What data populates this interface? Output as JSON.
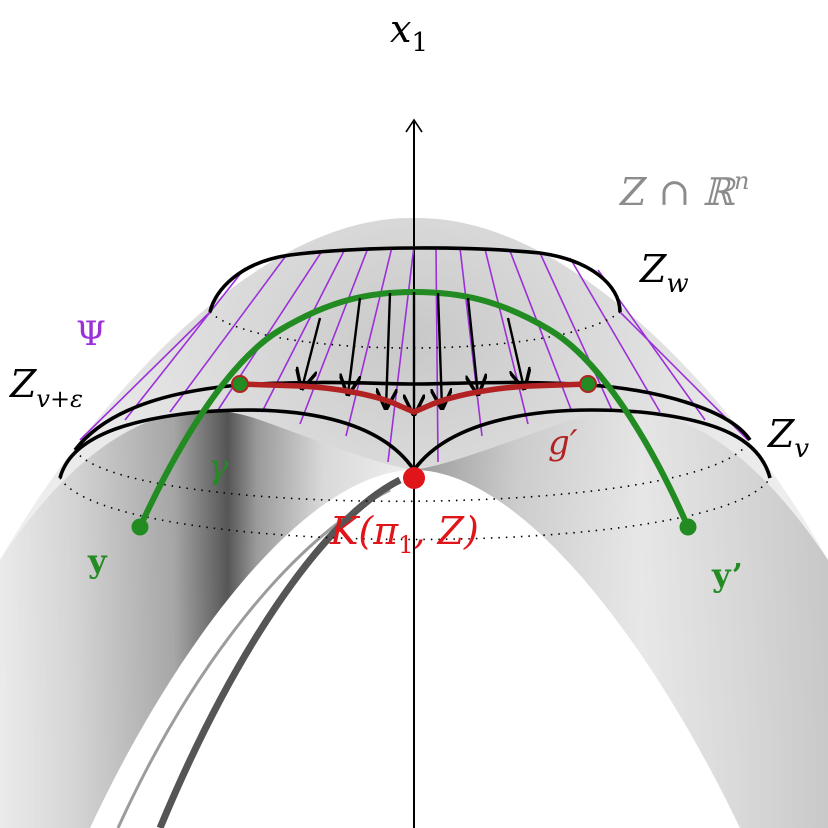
{
  "labels": {
    "axis": "x",
    "axis_sub": "1",
    "set": "Z ∩ ℝ",
    "set_sup": "n",
    "zw": "Z",
    "zw_sub": "w",
    "zve": "Z",
    "zve_sub": "v+ε",
    "zv": "Z",
    "zv_sub": "v",
    "psi": "Ψ",
    "gamma": "γ",
    "gprime": "g′",
    "y": "y",
    "yprime": "y’",
    "k": "K(π",
    "k_sub": "1",
    "k_rest": ", Z)"
  },
  "colors": {
    "green": "#228b22",
    "red": "#e0151a",
    "darkred": "#b22222",
    "purple": "#9b30d9",
    "gray": "#8c8c8c",
    "black": "#000000"
  }
}
